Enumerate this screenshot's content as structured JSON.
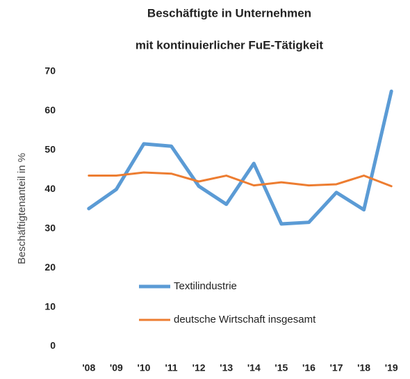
{
  "chart_data": {
    "type": "line",
    "title": [
      "Beschäftigte in Unternehmen",
      "mit kontinuierlicher FuE-Tätigkeit"
    ],
    "ylabel": "Beschäftigtenanteil in %",
    "categories": [
      "'08",
      "'09",
      "'10",
      "'11",
      "'12",
      "'13",
      "'14",
      "'15",
      "'16",
      "'17",
      "'18",
      "'19"
    ],
    "series": [
      {
        "name": "Textilindustrie",
        "color": "#5b9bd5",
        "values": [
          35.1,
          40,
          51.6,
          51,
          40.8,
          36.2,
          46.6,
          31.2,
          31.6,
          39.2,
          34.8,
          65
        ]
      },
      {
        "name": "deutsche Wirtschaft insgesamt",
        "color": "#ed7d31",
        "values": [
          43.5,
          43.5,
          44.3,
          44,
          42,
          43.5,
          41,
          41.8,
          41,
          41.3,
          43.5,
          40.8
        ]
      }
    ],
    "ylim": [
      0,
      70
    ],
    "yticks": [
      0,
      10,
      20,
      30,
      40,
      50,
      60,
      70
    ],
    "grid": false,
    "legend": "lower center"
  }
}
